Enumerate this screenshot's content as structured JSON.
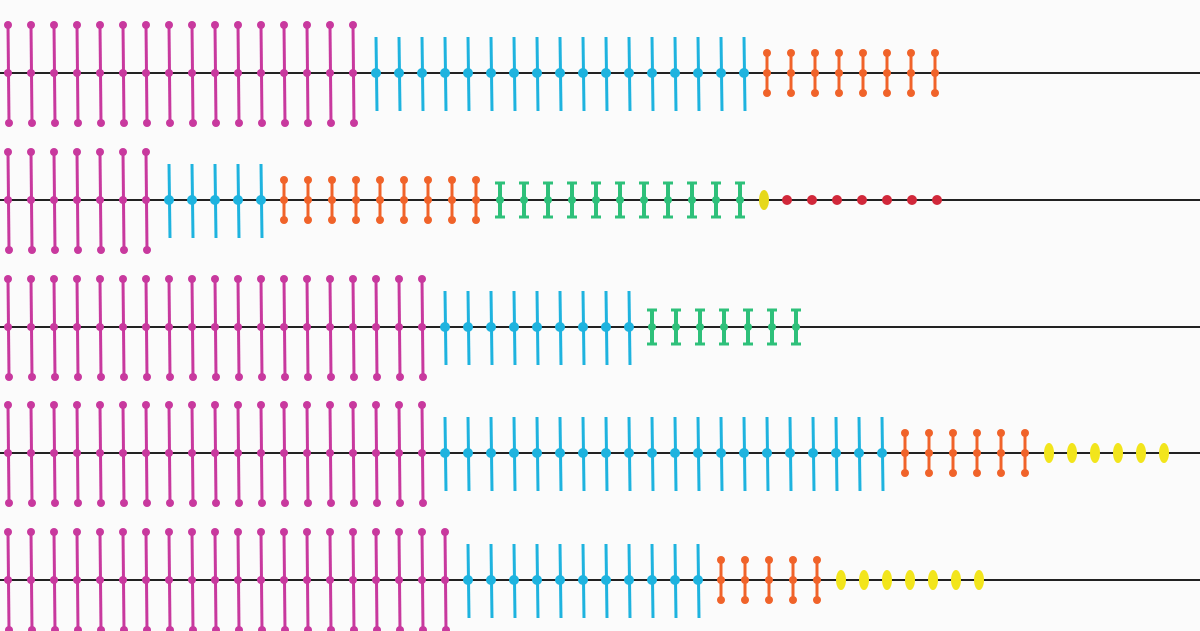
{
  "rows": [
    {
      "segments": [
        {
          "style": "magenta",
          "color": "#c8399e",
          "count": 16
        },
        {
          "style": "cyan",
          "color": "#1eb3df",
          "count": 17
        },
        {
          "style": "orange",
          "color": "#f0632a",
          "count": 8
        }
      ]
    },
    {
      "segments": [
        {
          "style": "magenta",
          "color": "#c8399e",
          "count": 7
        },
        {
          "style": "cyan",
          "color": "#1eb3df",
          "count": 5
        },
        {
          "style": "orange",
          "color": "#f0632a",
          "count": 9
        },
        {
          "style": "green",
          "color": "#2ec07a",
          "count": 11
        },
        {
          "style": "yellow",
          "color": "#e6d81a",
          "count": 1
        },
        {
          "style": "dot",
          "color": "#d1283a",
          "count": 7
        }
      ]
    },
    {
      "segments": [
        {
          "style": "magenta",
          "color": "#c8399e",
          "count": 19
        },
        {
          "style": "cyan",
          "color": "#1eb3df",
          "count": 9
        },
        {
          "style": "green",
          "color": "#2ec07a",
          "count": 7
        }
      ]
    },
    {
      "segments": [
        {
          "style": "magenta",
          "color": "#c8399e",
          "count": 19
        },
        {
          "style": "cyan",
          "color": "#1eb3df",
          "count": 20
        },
        {
          "style": "orange",
          "color": "#f0632a",
          "count": 6
        },
        {
          "style": "yellow",
          "color": "#f2e51c",
          "count": 6
        }
      ]
    },
    {
      "segments": [
        {
          "style": "magenta",
          "color": "#c8399e",
          "count": 20
        },
        {
          "style": "cyan",
          "color": "#1eb3df",
          "count": 11
        },
        {
          "style": "orange",
          "color": "#f0632a",
          "count": 5
        },
        {
          "style": "yellow",
          "color": "#f2e51c",
          "count": 7
        }
      ]
    }
  ]
}
